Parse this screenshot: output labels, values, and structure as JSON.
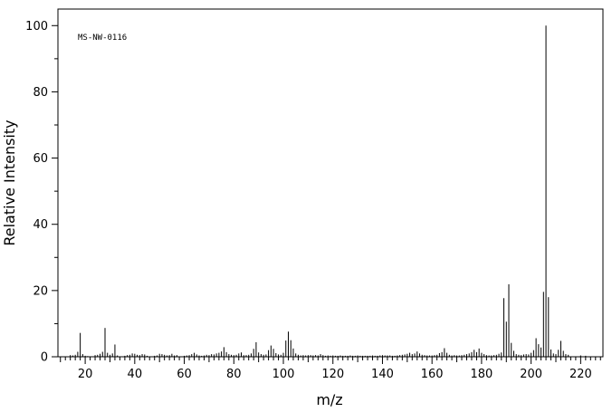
{
  "chart_data": {
    "type": "bar",
    "annotation": "MS-NW-0116",
    "xlabel": "m/z",
    "ylabel": "Relative Intensity",
    "xlim": [
      9,
      229
    ],
    "ylim": [
      0,
      105
    ],
    "x_ticks": [
      20,
      40,
      60,
      80,
      100,
      120,
      140,
      160,
      180,
      200,
      220
    ],
    "y_ticks": [
      0,
      20,
      40,
      60,
      80,
      100
    ],
    "grid": false,
    "legend": "none",
    "series": [
      {
        "x": [
          14,
          15,
          16,
          17,
          18,
          19,
          20,
          21,
          24,
          25,
          26,
          27,
          28,
          29,
          30,
          31,
          32,
          33,
          36,
          37,
          38,
          39,
          40,
          41,
          42,
          43,
          44,
          45,
          48,
          49,
          50,
          51,
          52,
          53,
          54,
          55,
          56,
          57,
          60,
          61,
          62,
          63,
          64,
          65,
          66,
          67,
          68,
          69,
          70,
          71,
          72,
          73,
          74,
          75,
          76,
          77,
          78,
          79,
          80,
          81,
          82,
          83,
          84,
          85,
          86,
          87,
          88,
          89,
          90,
          91,
          92,
          93,
          94,
          95,
          96,
          97,
          98,
          99,
          100,
          101,
          102,
          103,
          104,
          105,
          106,
          107,
          108,
          109,
          110,
          111,
          112,
          113,
          114,
          115,
          116,
          117,
          118,
          119,
          120,
          121,
          122,
          123,
          124,
          125,
          126,
          127,
          128,
          129,
          130,
          131,
          132,
          133,
          134,
          135,
          136,
          137,
          138,
          139,
          140,
          141,
          142,
          143,
          144,
          145,
          146,
          147,
          148,
          149,
          150,
          151,
          152,
          153,
          154,
          155,
          156,
          157,
          158,
          159,
          160,
          161,
          162,
          163,
          164,
          165,
          166,
          167,
          168,
          169,
          170,
          171,
          172,
          173,
          174,
          175,
          176,
          177,
          178,
          179,
          180,
          181,
          182,
          183,
          184,
          185,
          186,
          187,
          188,
          189,
          190,
          191,
          192,
          193,
          194,
          195,
          196,
          197,
          198,
          199,
          200,
          201,
          202,
          203,
          204,
          205,
          206,
          207,
          208,
          209,
          210,
          211,
          212,
          213,
          214,
          215,
          220,
          222
        ],
        "values": [
          0.5,
          0.4,
          0.6,
          1.5,
          7.2,
          0.8,
          0.3,
          0.2,
          0.5,
          0.6,
          0.9,
          1.5,
          8.7,
          1.2,
          0.6,
          1.0,
          3.7,
          0.4,
          0.3,
          0.5,
          0.6,
          1.0,
          0.9,
          0.6,
          0.5,
          0.8,
          0.7,
          0.3,
          0.3,
          0.4,
          0.9,
          0.8,
          0.6,
          0.4,
          0.5,
          0.9,
          0.4,
          0.5,
          0.3,
          0.4,
          0.5,
          0.8,
          1.2,
          0.7,
          0.4,
          0.3,
          0.4,
          0.6,
          0.5,
          0.8,
          0.7,
          1.0,
          1.2,
          1.6,
          2.9,
          1.4,
          0.8,
          0.6,
          0.5,
          0.6,
          1.0,
          1.3,
          0.5,
          0.5,
          0.6,
          1.0,
          2.4,
          4.4,
          1.3,
          0.8,
          0.6,
          0.7,
          2.0,
          3.4,
          2.4,
          1.1,
          0.7,
          0.6,
          1.2,
          4.9,
          7.6,
          5.0,
          2.5,
          1.0,
          0.6,
          0.4,
          0.5,
          0.4,
          0.5,
          0.5,
          0.4,
          0.5,
          0.4,
          0.8,
          0.5,
          0.3,
          0.4,
          0.3,
          0.4,
          0.3,
          0.3,
          0.4,
          0.3,
          0.3,
          0.3,
          0.4,
          0.3,
          0.3,
          0.4,
          0.3,
          0.3,
          0.3,
          0.3,
          0.3,
          0.4,
          0.3,
          0.3,
          0.4,
          0.5,
          0.4,
          0.4,
          0.4,
          0.3,
          0.3,
          0.4,
          0.5,
          0.6,
          0.7,
          0.9,
          1.2,
          0.8,
          1.0,
          1.6,
          1.0,
          0.6,
          0.5,
          0.4,
          0.4,
          0.4,
          0.5,
          0.6,
          1.1,
          1.4,
          2.6,
          1.2,
          0.6,
          0.4,
          0.5,
          0.4,
          0.4,
          0.5,
          0.6,
          0.8,
          1.0,
          1.4,
          2.1,
          1.4,
          2.5,
          1.2,
          0.8,
          0.5,
          0.4,
          0.4,
          0.5,
          0.6,
          0.9,
          1.3,
          17.7,
          10.6,
          21.9,
          4.2,
          1.8,
          0.8,
          0.6,
          0.5,
          0.7,
          0.8,
          0.7,
          1.2,
          2.0,
          5.6,
          3.8,
          2.8,
          19.6,
          100,
          18.0,
          2.2,
          1.0,
          0.8,
          2.1,
          4.8,
          1.8,
          0.8,
          0.6,
          0.4,
          0.3
        ]
      }
    ]
  }
}
